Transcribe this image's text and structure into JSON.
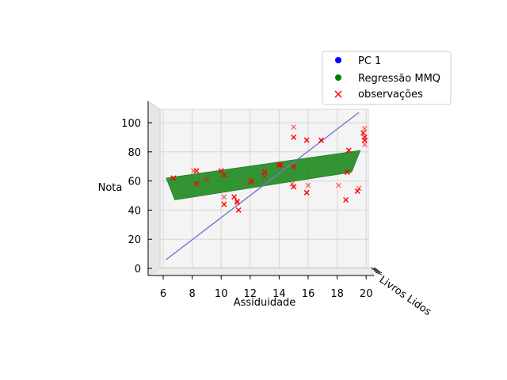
{
  "chart_data": {
    "type": "scatter",
    "projection": "3d",
    "xlabel": "Assiduidade",
    "ylabel": "Livros Lidos",
    "zlabel": "Nota",
    "x_ticks": [
      "6",
      "8",
      "10",
      "12",
      "14",
      "16",
      "18",
      "20"
    ],
    "z_ticks": [
      "0",
      "20",
      "40",
      "60",
      "80",
      "100"
    ],
    "xlim": [
      5,
      20
    ],
    "zlim": [
      0,
      110
    ],
    "grid": true,
    "legend_position": "top-right",
    "legend": [
      {
        "label": "PC 1",
        "marker": "circle",
        "color": "#0000ff"
      },
      {
        "label": "Regressão MMQ",
        "marker": "circle",
        "color": "#008000"
      },
      {
        "label": "observações",
        "marker": "x",
        "color": "#ff0000"
      }
    ],
    "regression_plane": {
      "color": "#228b22",
      "corners": [
        {
          "x": 6.2,
          "z": 62
        },
        {
          "x": 19.6,
          "z": 81
        },
        {
          "x": 19,
          "z": 66
        },
        {
          "x": 6.8,
          "z": 47
        }
      ]
    },
    "pc1_line": {
      "color": "#7777cc",
      "from": {
        "x": 6.2,
        "z": 6
      },
      "to": {
        "x": 19.5,
        "z": 107
      }
    },
    "observations": [
      {
        "x": 6.7,
        "z": 62
      },
      {
        "x": 8.1,
        "z": 67
      },
      {
        "x": 8.3,
        "z": 67
      },
      {
        "x": 8.3,
        "z": 58
      },
      {
        "x": 9.0,
        "z": 61
      },
      {
        "x": 10.0,
        "z": 67
      },
      {
        "x": 10.2,
        "z": 44
      },
      {
        "x": 10.2,
        "z": 49
      },
      {
        "x": 10.2,
        "z": 64
      },
      {
        "x": 10.9,
        "z": 49
      },
      {
        "x": 11.1,
        "z": 45
      },
      {
        "x": 11.1,
        "z": 46
      },
      {
        "x": 11.2,
        "z": 40
      },
      {
        "x": 12.0,
        "z": 59
      },
      {
        "x": 12.1,
        "z": 60
      },
      {
        "x": 13.0,
        "z": 66
      },
      {
        "x": 13.0,
        "z": 63
      },
      {
        "x": 14.0,
        "z": 71
      },
      {
        "x": 14.1,
        "z": 71
      },
      {
        "x": 15.0,
        "z": 97
      },
      {
        "x": 15.0,
        "z": 90
      },
      {
        "x": 15.0,
        "z": 70
      },
      {
        "x": 14.9,
        "z": 58
      },
      {
        "x": 15.0,
        "z": 56
      },
      {
        "x": 15.9,
        "z": 88
      },
      {
        "x": 16.0,
        "z": 57
      },
      {
        "x": 15.9,
        "z": 52
      },
      {
        "x": 16.9,
        "z": 88
      },
      {
        "x": 18.1,
        "z": 57
      },
      {
        "x": 18.6,
        "z": 47
      },
      {
        "x": 18.8,
        "z": 81
      },
      {
        "x": 19.5,
        "z": 55
      },
      {
        "x": 19.4,
        "z": 53
      },
      {
        "x": 19.8,
        "z": 93
      },
      {
        "x": 19.9,
        "z": 96
      },
      {
        "x": 19.9,
        "z": 90
      },
      {
        "x": 19.9,
        "z": 88
      },
      {
        "x": 19.9,
        "z": 85
      },
      {
        "x": 18.7,
        "z": 66
      }
    ]
  }
}
